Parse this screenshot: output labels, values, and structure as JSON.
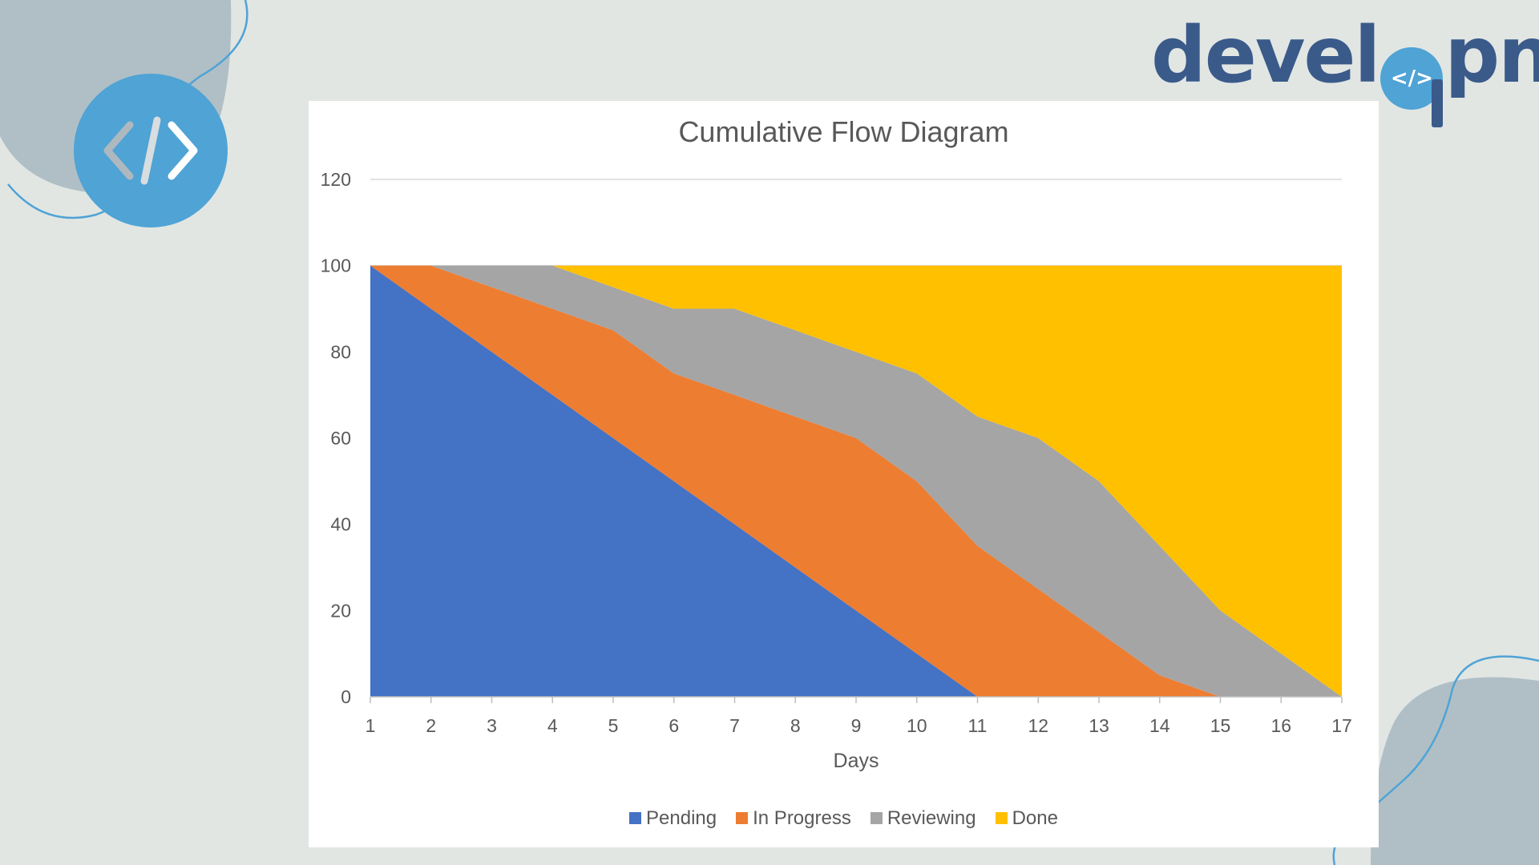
{
  "brand": {
    "logo_text_before": "devel",
    "logo_text_after": "pn",
    "logo_mark": "</>",
    "badge_icon": "code-brackets-icon"
  },
  "colors": {
    "background": "#e1e6e3",
    "blob": "#b0bfc6",
    "brand_blue": "#4fa3d5",
    "brand_navy": "#3a5a8a"
  },
  "chart_data": {
    "type": "area",
    "stacked": true,
    "title": "Cumulative Flow Diagram",
    "xlabel": "Days",
    "ylabel": "",
    "x": [
      1,
      2,
      3,
      4,
      5,
      6,
      7,
      8,
      9,
      10,
      11,
      12,
      13,
      14,
      15,
      16,
      17
    ],
    "ylim": [
      0,
      120
    ],
    "yticks": [
      0,
      20,
      40,
      60,
      80,
      100,
      120
    ],
    "grid": true,
    "legend_position": "bottom",
    "series": [
      {
        "name": "Pending",
        "color": "#4472c4",
        "values": [
          100,
          90,
          80,
          70,
          60,
          50,
          40,
          30,
          20,
          10,
          0,
          0,
          0,
          0,
          0,
          0,
          0
        ]
      },
      {
        "name": "In Progress",
        "color": "#ed7d31",
        "values": [
          0,
          10,
          15,
          20,
          25,
          25,
          30,
          35,
          40,
          40,
          35,
          25,
          15,
          5,
          0,
          0,
          0
        ]
      },
      {
        "name": "Reviewing",
        "color": "#a5a5a5",
        "values": [
          0,
          0,
          5,
          10,
          10,
          15,
          20,
          20,
          20,
          25,
          30,
          35,
          35,
          30,
          20,
          10,
          0
        ]
      },
      {
        "name": "Done",
        "color": "#ffc000",
        "values": [
          0,
          0,
          0,
          0,
          5,
          10,
          10,
          15,
          20,
          25,
          35,
          40,
          50,
          65,
          80,
          90,
          100
        ]
      }
    ]
  }
}
